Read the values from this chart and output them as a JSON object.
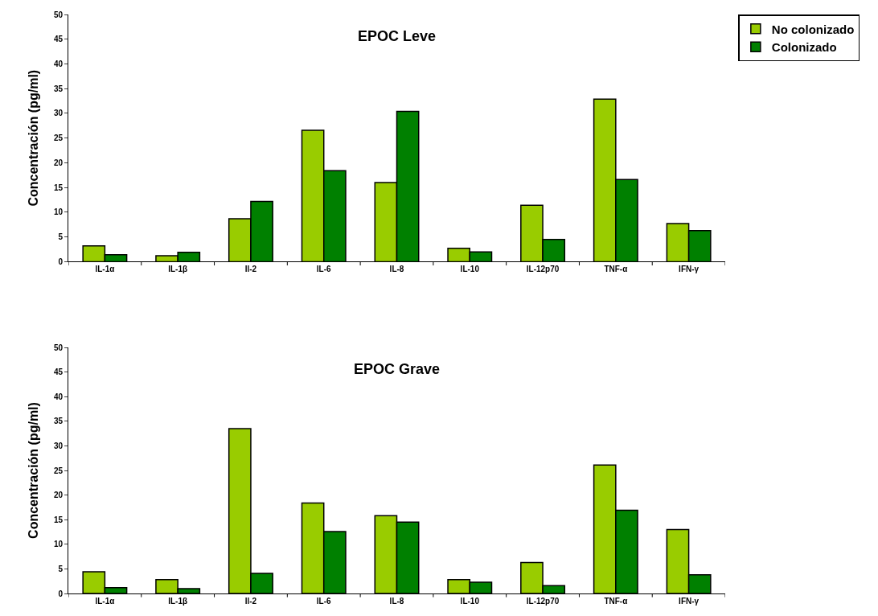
{
  "chart_data": [
    {
      "type": "bar",
      "title": "EPOC Leve",
      "ylabel": "Concentración (pg/ml)",
      "categories": [
        "IL-1α",
        "IL-1β",
        "Il-2",
        "IL-6",
        "IL-8",
        "IL-10",
        "IL-12p70",
        "TNF-α",
        "IFN-γ"
      ],
      "series": [
        {
          "name": "No colonizado",
          "color": "#99cc00",
          "values": [
            3.2,
            1.2,
            8.7,
            26.6,
            16.0,
            2.7,
            11.4,
            32.9,
            7.7
          ]
        },
        {
          "name": "Colonizado",
          "color": "#008000",
          "values": [
            1.4,
            1.9,
            12.2,
            18.4,
            30.4,
            2.0,
            4.5,
            16.6,
            6.3
          ]
        }
      ],
      "ylim": [
        0,
        50
      ],
      "yticks": [
        0,
        5,
        10,
        15,
        20,
        25,
        30,
        35,
        40,
        45,
        50
      ],
      "legend": "top right"
    },
    {
      "type": "bar",
      "title": "EPOC Grave",
      "ylabel": "Concentración (pg/ml)",
      "categories": [
        "IL-1α",
        "IL-1β",
        "Il-2",
        "IL-6",
        "IL-8",
        "IL-10",
        "IL-12p70",
        "TNF-α",
        "IFN-γ"
      ],
      "series": [
        {
          "color": "#99cc00",
          "values": [
            4.4,
            2.8,
            33.5,
            18.4,
            15.8,
            2.8,
            6.3,
            26.1,
            13.0
          ]
        },
        {
          "color": "#008000",
          "values": [
            1.2,
            1.0,
            4.1,
            12.6,
            14.5,
            2.3,
            1.6,
            16.9,
            3.8
          ]
        }
      ],
      "ylim": [
        0,
        50
      ],
      "yticks": [
        0,
        5,
        10,
        15,
        20,
        25,
        30,
        35,
        40,
        45,
        50
      ]
    }
  ]
}
